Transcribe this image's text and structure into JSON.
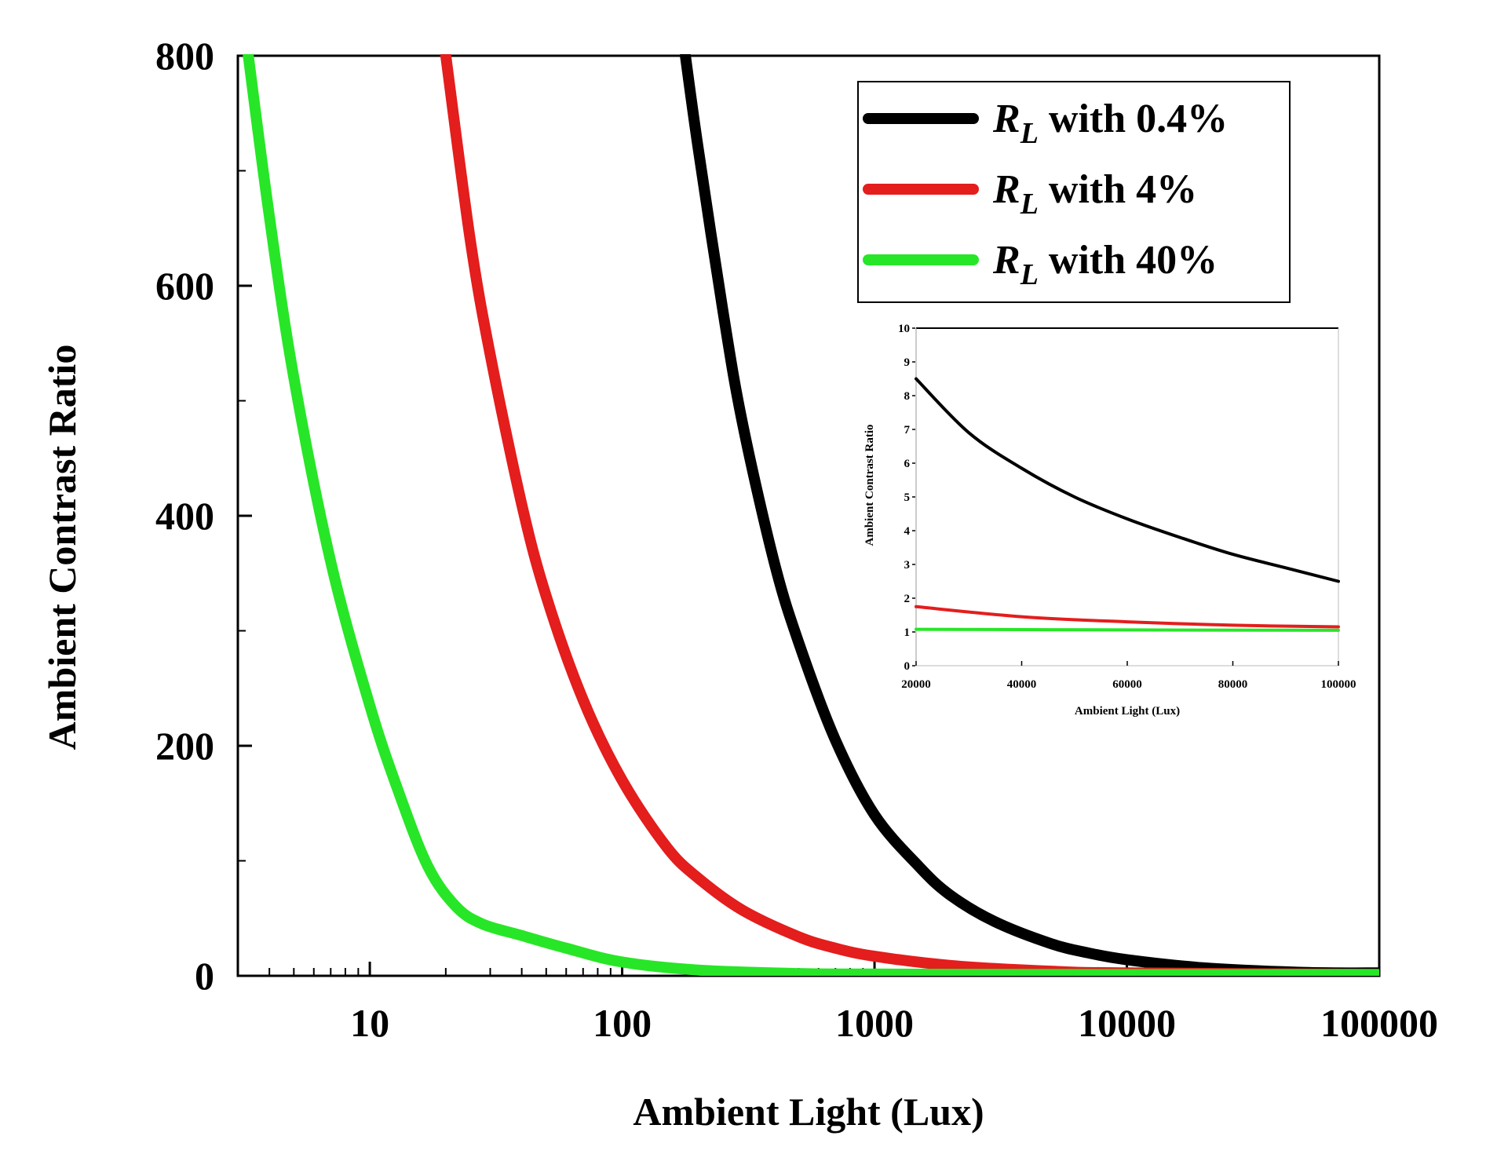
{
  "chart_data": [
    {
      "type": "line",
      "xscale": "log",
      "title": "",
      "xlabel": "Ambient Light (Lux)",
      "ylabel": "Ambient Contrast Ratio",
      "xlim": [
        3,
        100000
      ],
      "ylim": [
        0,
        800
      ],
      "xticks": [
        10,
        100,
        1000,
        10000,
        100000
      ],
      "xtick_labels": [
        "10",
        "100",
        "1000",
        "10000",
        "100000"
      ],
      "yticks": [
        0,
        200,
        400,
        600,
        800
      ],
      "ytick_labels": [
        "0",
        "200",
        "400",
        "600",
        "800"
      ],
      "legend": {
        "placement": "top-right",
        "entries": [
          {
            "symbol": "R",
            "subscript": "L",
            "text": " with 0.4%"
          },
          {
            "symbol": "R",
            "subscript": "L",
            "text": " with 4%"
          },
          {
            "symbol": "R",
            "subscript": "L",
            "text": " with 40%"
          }
        ]
      },
      "series": [
        {
          "name": "RL with 0.4%",
          "color": "#000000",
          "x": [
            178,
            200,
            250,
            300,
            400,
            500,
            700,
            1000,
            1500,
            2000,
            3000,
            5000,
            7000,
            10000,
            20000,
            50000,
            100000
          ],
          "y": [
            800,
            720,
            580,
            480,
            360,
            290,
            205,
            140,
            95,
            70,
            47,
            28,
            20,
            14,
            7,
            3,
            2.5
          ]
        },
        {
          "name": "RL with 4%",
          "color": "#e41d1d",
          "x": [
            20,
            25,
            30,
            40,
            50,
            70,
            100,
            150,
            200,
            300,
            500,
            700,
            1000,
            2000,
            5000,
            10000,
            100000
          ],
          "y": [
            800,
            640,
            540,
            410,
            330,
            240,
            170,
            112,
            85,
            57,
            34,
            24,
            17,
            9,
            4,
            2.5,
            1.2
          ]
        },
        {
          "name": "RL with 40%",
          "color": "#27e627",
          "x": [
            3.3,
            4,
            5,
            7,
            10,
            13,
            17,
            22,
            28,
            40,
            60,
            100,
            200,
            500,
            1000,
            10000,
            100000
          ],
          "y": [
            800,
            660,
            520,
            360,
            235,
            160,
            95,
            60,
            45,
            35,
            24,
            12,
            5,
            2,
            1.5,
            1.1,
            1.1
          ]
        }
      ]
    },
    {
      "type": "line",
      "title": "",
      "xlabel": "Ambient Light (Lux)",
      "ylabel": "Ambient Contrast Ratio",
      "xlim": [
        20000,
        100000
      ],
      "ylim": [
        0,
        10
      ],
      "xticks": [
        20000,
        40000,
        60000,
        80000,
        100000
      ],
      "xtick_labels": [
        "20000",
        "40000",
        "60000",
        "80000",
        "100000"
      ],
      "yticks": [
        0,
        1,
        2,
        3,
        4,
        5,
        6,
        7,
        8,
        9,
        10
      ],
      "ytick_labels": [
        "0",
        "1",
        "2",
        "3",
        "4",
        "5",
        "6",
        "7",
        "8",
        "9",
        "10"
      ],
      "series": [
        {
          "name": "RL with 0.4%",
          "color": "#000000",
          "x": [
            20000,
            30000,
            40000,
            50000,
            60000,
            70000,
            80000,
            90000,
            100000
          ],
          "y": [
            8.5,
            6.9,
            5.85,
            5.0,
            4.35,
            3.8,
            3.3,
            2.9,
            2.5
          ]
        },
        {
          "name": "RL with 4%",
          "color": "#e41d1d",
          "x": [
            20000,
            40000,
            60000,
            80000,
            100000
          ],
          "y": [
            1.75,
            1.45,
            1.3,
            1.2,
            1.15
          ]
        },
        {
          "name": "RL with 40%",
          "color": "#27e627",
          "x": [
            20000,
            60000,
            100000
          ],
          "y": [
            1.08,
            1.06,
            1.05
          ]
        }
      ]
    }
  ]
}
